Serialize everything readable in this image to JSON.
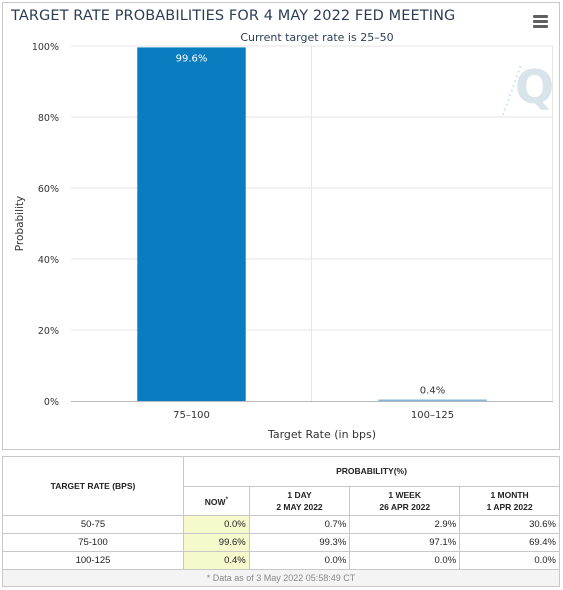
{
  "chart_data": {
    "type": "bar",
    "title": "TARGET RATE PROBABILITIES FOR 4 MAY 2022 FED MEETING",
    "subtitle": "Current target rate is 25–50",
    "xlabel": "Target Rate (in bps)",
    "ylabel": "Probability",
    "categories": [
      "75–100",
      "100–125"
    ],
    "values": [
      99.6,
      0.4
    ],
    "data_labels": [
      "99.6%",
      "0.4%"
    ],
    "ylim": [
      0,
      100
    ],
    "y_ticks": [
      0,
      20,
      40,
      60,
      80,
      100
    ],
    "y_tick_labels": [
      "0%",
      "20%",
      "40%",
      "60%",
      "80%",
      "100%"
    ],
    "grid": true,
    "bar_colors": [
      "#0a7dc1",
      "#7fb8e2"
    ]
  },
  "watermark_glyph": "Q",
  "menu": {
    "icon": "hamburger-menu-icon"
  },
  "table": {
    "rate_header": "TARGET RATE (BPS)",
    "prob_header": "PROBABILITY(%)",
    "columns": [
      {
        "line1": "NOW",
        "line2": "",
        "mark": "*"
      },
      {
        "line1": "1 DAY",
        "line2": "2 MAY 2022",
        "mark": ""
      },
      {
        "line1": "1 WEEK",
        "line2": "26 APR 2022",
        "mark": ""
      },
      {
        "line1": "1 MONTH",
        "line2": "1 APR 2022",
        "mark": ""
      }
    ],
    "rows": [
      {
        "rate": "50-75",
        "values": [
          "0.0%",
          "0.7%",
          "2.9%",
          "30.6%"
        ]
      },
      {
        "rate": "75-100",
        "values": [
          "99.6%",
          "99.3%",
          "97.1%",
          "69.4%"
        ]
      },
      {
        "rate": "100-125",
        "values": [
          "0.4%",
          "0.0%",
          "0.0%",
          "0.0%"
        ]
      }
    ],
    "footnote": "* Data as of 3 May 2022 05:58:49 CT"
  }
}
